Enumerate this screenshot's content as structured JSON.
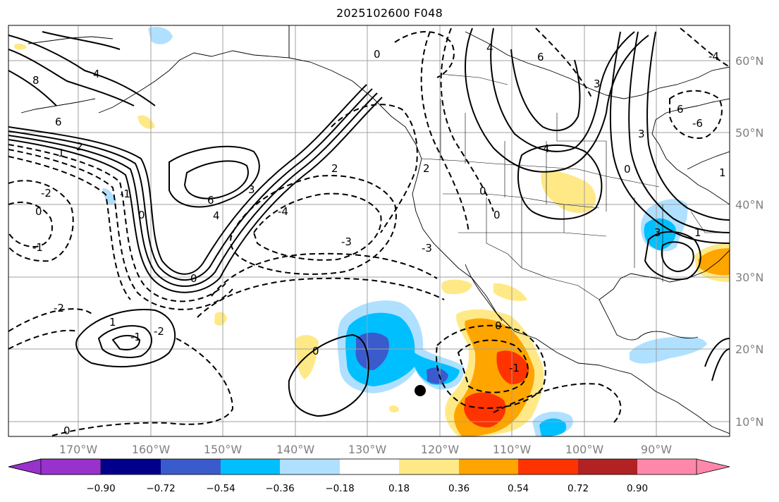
{
  "title": "2025102600 F048",
  "lon_ticks": [
    "170°W",
    "160°W",
    "150°W",
    "140°W",
    "130°W",
    "120°W",
    "110°W",
    "100°W",
    "90°W"
  ],
  "lat_ticks": [
    "10°N",
    "20°N",
    "30°N",
    "40°N",
    "50°N",
    "60°N"
  ],
  "colorbar": {
    "labels": [
      "−0.90",
      "−0.72",
      "−0.54",
      "−0.36",
      "−0.18",
      "0.18",
      "0.36",
      "0.54",
      "0.72",
      "0.90"
    ],
    "colors": [
      "#9932CC",
      "#00008B",
      "#3A5BCC",
      "#00BFFF",
      "#B0E0FF",
      "#FFFFFF",
      "#FFE987",
      "#FFA500",
      "#FF3300",
      "#B22222",
      "#FF88AA"
    ]
  },
  "contour_labels": [
    "8",
    "6",
    "4",
    "2",
    "1",
    "-1",
    "-2",
    "-2",
    "0",
    "-1",
    "6",
    "4",
    "3",
    "0",
    "-4",
    "-3",
    "2",
    "0",
    "1",
    "-2",
    "0",
    "-1",
    "0",
    "0",
    "-1",
    "4",
    "6",
    "4",
    "3",
    "0",
    "6",
    "3",
    "0",
    "-4",
    "3",
    "1",
    "2",
    "0",
    "-3",
    "-6",
    "0",
    "1"
  ],
  "chart_data": {
    "type": "map",
    "region": "North Pacific and North America",
    "lon_range": [
      -178,
      -81
    ],
    "lat_range": [
      8,
      65
    ],
    "colors": {
      "positive": "#FFA500",
      "negative": "#00BFFF",
      "contour": "#000000",
      "grid": "#a0a0a0"
    }
  }
}
